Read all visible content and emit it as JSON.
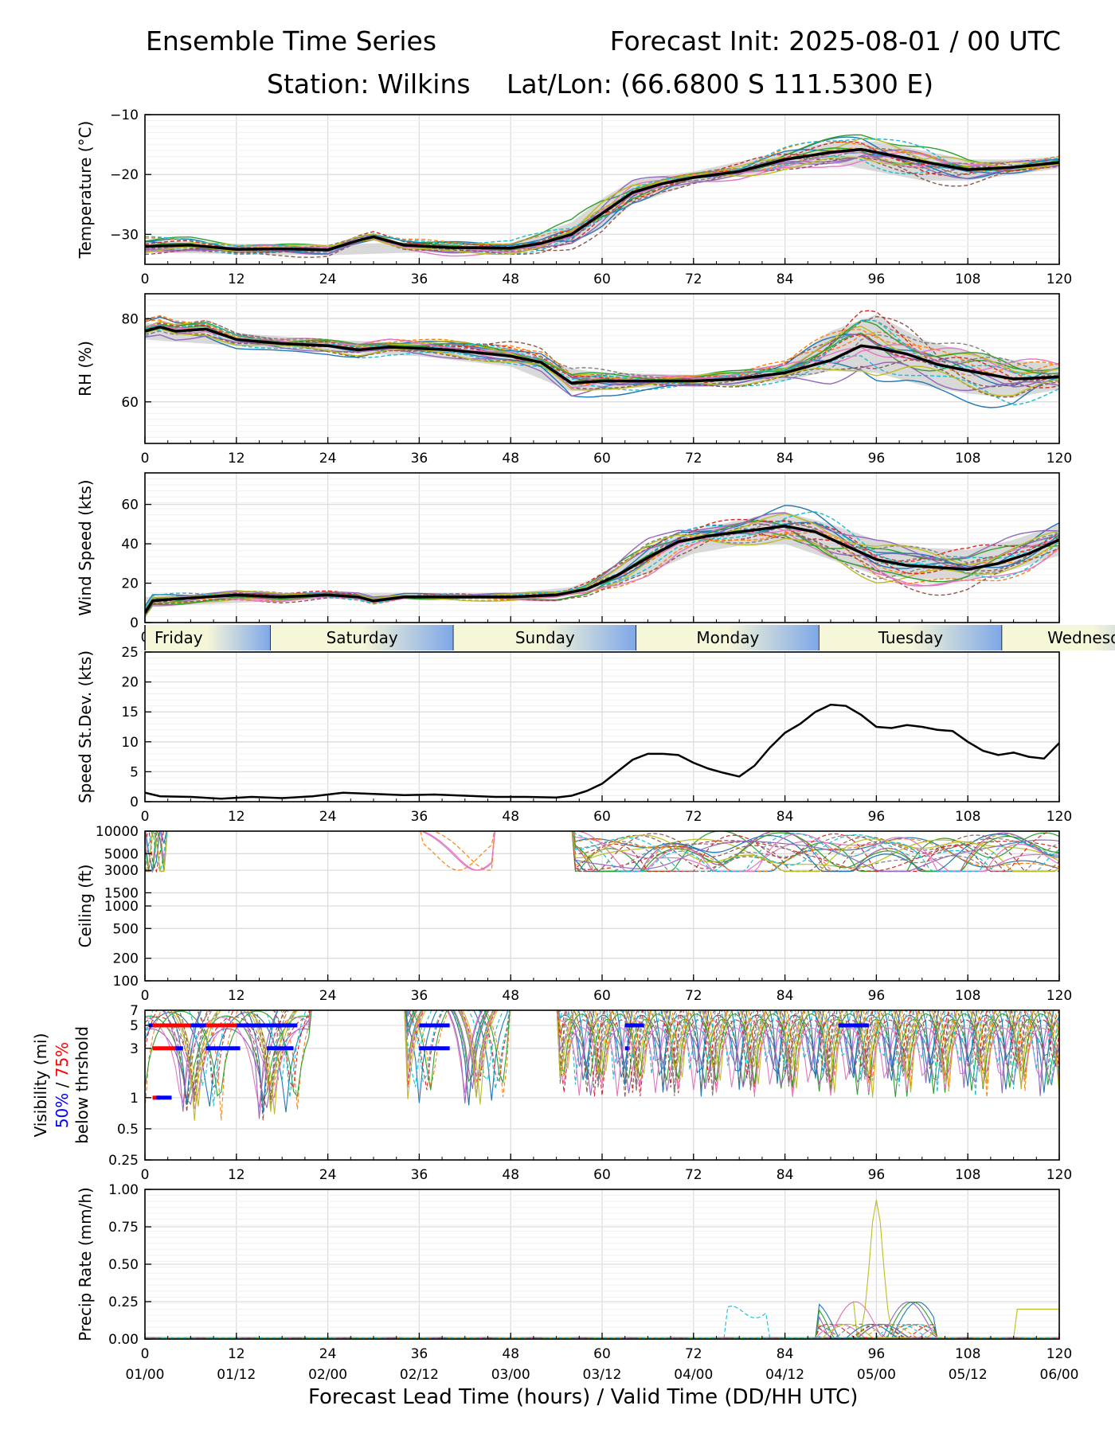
{
  "header": {
    "title": "Ensemble Time Series",
    "init": "Forecast Init: 2025-08-01 / 00 UTC",
    "station": "Station: Wilkins",
    "latlon": "Lat/Lon: (66.6800 S 111.5300 E)"
  },
  "colors": {
    "mean": "#000000",
    "spread": "#cccccc",
    "members": [
      "#1f77b4",
      "#ff7f0e",
      "#2ca02c",
      "#d62728",
      "#9467bd",
      "#8c564b",
      "#e377c2",
      "#7f7f7f",
      "#bcbd22",
      "#17becf"
    ],
    "vis50": "#0000ff",
    "vis75": "#ff0000",
    "day_band_light": "#f6f6d8",
    "day_band_dark": "#7ea7e8"
  },
  "xaxis": {
    "label": "Forecast Lead Time (hours) / Valid Time (DD/HH UTC)",
    "range": [
      0,
      120
    ],
    "ticks": [
      0,
      12,
      24,
      36,
      48,
      60,
      72,
      84,
      96,
      108,
      120
    ],
    "valid_labels": [
      "01/00",
      "01/12",
      "02/00",
      "02/12",
      "03/00",
      "03/12",
      "04/00",
      "04/12",
      "05/00",
      "05/12",
      "06/00"
    ]
  },
  "day_bands": [
    {
      "label": "Friday",
      "start": 0,
      "end": 16.5
    },
    {
      "label": "Saturday",
      "start": 16.5,
      "end": 40.5
    },
    {
      "label": "Sunday",
      "start": 40.5,
      "end": 64.5
    },
    {
      "label": "Monday",
      "start": 64.5,
      "end": 88.5
    },
    {
      "label": "Tuesday",
      "start": 88.5,
      "end": 112.5
    },
    {
      "label": "Wednesday",
      "start": 112.5,
      "end": 136.5
    }
  ],
  "chart_data": [
    {
      "id": "temperature",
      "type": "line",
      "ylabel": "Temperature (°C)",
      "ylim": [
        -35,
        -10
      ],
      "yticks": [
        -30,
        -20,
        -10
      ],
      "ensemble_members": 20,
      "mean": {
        "x": [
          0,
          6,
          12,
          18,
          24,
          28,
          30,
          34,
          40,
          48,
          52,
          56,
          60,
          64,
          68,
          72,
          78,
          84,
          90,
          94,
          98,
          104,
          108,
          114,
          120
        ],
        "y": [
          -32,
          -31.8,
          -32.5,
          -32.4,
          -32.6,
          -31.0,
          -30.4,
          -31.8,
          -32.2,
          -32.3,
          -31.5,
          -30.0,
          -26.5,
          -23,
          -21.5,
          -20.5,
          -19.5,
          -17.5,
          -16.3,
          -15.8,
          -16.8,
          -18.3,
          -19.2,
          -18.8,
          -18.0
        ]
      },
      "spread": {
        "x": [
          0,
          12,
          24,
          36,
          48,
          56,
          60,
          64,
          72,
          84,
          90,
          96,
          102,
          108,
          114,
          120
        ],
        "low": [
          -33,
          -33.3,
          -33.5,
          -33,
          -33.2,
          -31.5,
          -29,
          -25,
          -21.5,
          -19,
          -18,
          -19.5,
          -21,
          -21,
          -20,
          -19
        ],
        "high": [
          -31,
          -31.6,
          -31.7,
          -31.3,
          -31.5,
          -28,
          -24,
          -21,
          -19.5,
          -16.2,
          -14.5,
          -14.5,
          -16,
          -17.5,
          -17.5,
          -17
        ]
      }
    },
    {
      "id": "rh",
      "type": "line",
      "ylabel": "RH (%)",
      "ylim": [
        50,
        86
      ],
      "yticks": [
        60,
        80
      ],
      "ensemble_members": 20,
      "mean": {
        "x": [
          0,
          2,
          4,
          8,
          12,
          18,
          24,
          28,
          32,
          40,
          48,
          52,
          56,
          60,
          66,
          72,
          78,
          84,
          90,
          94,
          96,
          100,
          104,
          108,
          114,
          120
        ],
        "y": [
          77,
          78,
          77,
          77.5,
          75,
          74,
          73.5,
          72.5,
          73.2,
          72.5,
          71,
          69.5,
          64.5,
          65,
          65,
          65,
          65.5,
          67,
          70,
          73.5,
          73,
          71.5,
          69,
          67.5,
          65.5,
          66
        ]
      },
      "spread": {
        "x": [
          0,
          12,
          24,
          36,
          48,
          56,
          60,
          72,
          84,
          90,
          96,
          102,
          108,
          114,
          120
        ],
        "low": [
          75,
          73.5,
          72,
          71,
          68.5,
          62.5,
          63,
          64,
          65,
          67.5,
          67,
          64,
          62,
          61,
          63
        ],
        "high": [
          79,
          76.5,
          75,
          74,
          73,
          68,
          67,
          66.5,
          69,
          77,
          81,
          75,
          72,
          70,
          69
        ]
      }
    },
    {
      "id": "wind_speed",
      "type": "line",
      "ylabel": "Wind Speed (kts)",
      "ylim": [
        0,
        76
      ],
      "yticks": [
        0,
        20,
        40,
        60
      ],
      "ensemble_members": 20,
      "mean": {
        "x": [
          0,
          1,
          4,
          8,
          12,
          18,
          24,
          28,
          30,
          34,
          40,
          48,
          54,
          58,
          62,
          66,
          70,
          74,
          78,
          84,
          88,
          92,
          96,
          100,
          104,
          108,
          112,
          116,
          120
        ],
        "y": [
          5,
          11,
          12,
          13,
          14,
          13,
          14,
          13,
          11,
          13,
          13,
          13,
          14,
          17,
          24,
          33,
          41,
          44,
          46,
          49,
          46,
          39,
          32,
          29,
          28,
          27,
          30,
          35,
          42
        ]
      },
      "spread": {
        "x": [
          0,
          24,
          48,
          56,
          60,
          66,
          72,
          78,
          84,
          90,
          96,
          102,
          108,
          114,
          120
        ],
        "low": [
          8,
          12,
          12,
          14,
          17,
          25,
          35,
          39,
          40,
          32,
          24,
          22,
          22,
          27,
          34
        ],
        "high": [
          13,
          15,
          15,
          18,
          24,
          38,
          47,
          52,
          56,
          50,
          42,
          38,
          37,
          42,
          50
        ]
      }
    },
    {
      "id": "speed_stdev",
      "type": "line",
      "ylabel": "Speed St.Dev. (kts)",
      "ylim": [
        0,
        25
      ],
      "yticks": [
        0,
        5,
        10,
        15,
        20,
        25
      ],
      "series": [
        {
          "x": [
            0,
            2,
            6,
            10,
            14,
            18,
            22,
            26,
            30,
            34,
            38,
            42,
            46,
            50,
            54,
            56,
            58,
            60,
            62,
            64,
            66,
            68,
            70,
            72,
            74,
            76,
            78,
            80,
            82,
            84,
            86,
            88,
            90,
            92,
            94,
            96,
            98,
            100,
            102,
            104,
            106,
            108,
            110,
            112,
            114,
            116,
            118,
            120
          ],
          "y": [
            1.5,
            0.9,
            0.8,
            0.5,
            0.8,
            0.6,
            0.9,
            1.5,
            1.3,
            1.1,
            1.2,
            1.0,
            0.8,
            0.8,
            0.7,
            1.0,
            1.8,
            3.0,
            5.0,
            7.0,
            8.0,
            8.0,
            7.8,
            6.5,
            5.5,
            4.8,
            4.2,
            6.0,
            9.0,
            11.5,
            13.0,
            15.0,
            16.2,
            16.0,
            14.5,
            12.5,
            12.3,
            12.8,
            12.5,
            12.0,
            11.8,
            10.0,
            8.5,
            7.8,
            8.2,
            7.5,
            7.2,
            9.8
          ]
        }
      ]
    },
    {
      "id": "ceiling",
      "type": "line",
      "ylabel": "Ceiling (ft)",
      "yscale": "log",
      "ylim": [
        100,
        10000
      ],
      "yticks": [
        100,
        200,
        500,
        1000,
        1500,
        3000,
        5000,
        10000
      ],
      "ensemble_members": 20
    },
    {
      "id": "visibility",
      "type": "line",
      "ylabel_lines": [
        "Visibility (mi)",
        "50%",
        " / ",
        "75%",
        "below thrshold"
      ],
      "yscale": "log",
      "ylim": [
        0.25,
        7
      ],
      "yticks": [
        0.25,
        0.5,
        1,
        3,
        5,
        7
      ],
      "ensemble_members": 20,
      "threshold_50": [
        {
          "y": 5,
          "segments": [
            [
              0.5,
              1
            ],
            [
              6,
              8
            ],
            [
              12,
              20
            ],
            [
              36,
              40
            ],
            [
              63,
              65.5
            ],
            [
              91,
              95
            ]
          ]
        },
        {
          "y": 3,
          "segments": [
            [
              4,
              5
            ],
            [
              8,
              12.5
            ],
            [
              16,
              19.5
            ],
            [
              36,
              40
            ],
            [
              63,
              63.5
            ]
          ]
        },
        {
          "y": 1,
          "segments": [
            [
              1.5,
              3.5
            ]
          ]
        }
      ],
      "threshold_75": [
        {
          "y": 5,
          "segments": [
            [
              0.5,
              12.5
            ]
          ]
        },
        {
          "y": 3,
          "segments": [
            [
              1,
              4.5
            ]
          ]
        },
        {
          "y": 1,
          "segments": [
            [
              1,
              2
            ]
          ]
        }
      ]
    },
    {
      "id": "precip_rate",
      "type": "line",
      "ylabel": "Precip Rate (mm/h)",
      "ylim": [
        0,
        1.0
      ],
      "yticks": [
        0.0,
        0.25,
        0.5,
        0.75,
        1.0
      ],
      "ytick_labels": [
        "0.00",
        "0.25",
        "0.50",
        "0.75",
        "1.00"
      ],
      "ensemble_members": 20,
      "notable_peak": {
        "x": 96,
        "y": 0.93
      }
    }
  ]
}
